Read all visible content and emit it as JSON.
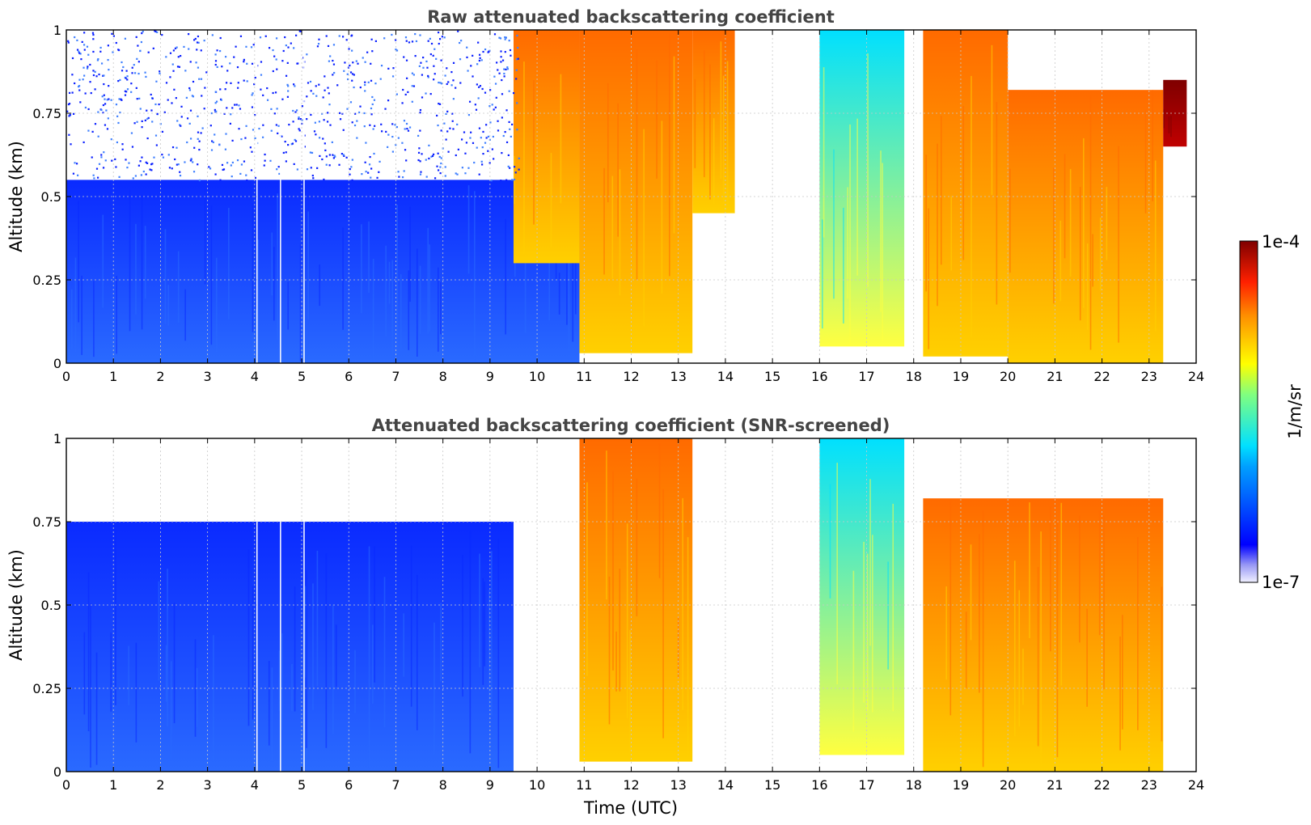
{
  "chart_data": [
    {
      "type": "heatmap",
      "title": "Raw attenuated backscattering coefficient",
      "xlabel": "",
      "ylabel": "Altitude (km)",
      "xlim": [
        0,
        24
      ],
      "ylim": [
        0,
        1
      ],
      "x_ticks": [
        "0",
        "1",
        "2",
        "3",
        "4",
        "5",
        "6",
        "7",
        "8",
        "9",
        "10",
        "11",
        "12",
        "13",
        "14",
        "15",
        "16",
        "17",
        "18",
        "19",
        "20",
        "21",
        "22",
        "23",
        "24"
      ],
      "y_ticks": [
        "0",
        "0.25",
        "0.5",
        "0.75",
        "1"
      ],
      "grid": true,
      "missing_profiles_utc": [
        4.05,
        4.55,
        5.05
      ],
      "features": [
        {
          "x_range": [
            0,
            10.9
          ],
          "alt_range": [
            0,
            0.55
          ],
          "level": "low (~3e-7 to 1e-6)"
        },
        {
          "x_range": [
            9.5,
            10.9
          ],
          "alt_range": [
            0.3,
            1.0
          ],
          "level": "high (~1e-5)"
        },
        {
          "x_range": [
            10.9,
            13.3
          ],
          "alt_range": [
            0.03,
            1.0
          ],
          "level": "high (~1e-5 to 1e-4)"
        },
        {
          "x_range": [
            13.3,
            14.2
          ],
          "alt_range": [
            0.45,
            1.0
          ],
          "level": "high (~3e-5)"
        },
        {
          "x_range": [
            16.0,
            17.8
          ],
          "alt_range": [
            0.05,
            1.0
          ],
          "level": "medium (~3e-6 to 1e-5)"
        },
        {
          "x_range": [
            18.2,
            20.0
          ],
          "alt_range": [
            0.02,
            1.0
          ],
          "level": "high (~1e-5 to 3e-5)"
        },
        {
          "x_range": [
            20.0,
            23.3
          ],
          "alt_range": [
            0.0,
            0.82
          ],
          "level": "high (~1e-5 to 1e-4)"
        },
        {
          "x_range": [
            23.3,
            23.8
          ],
          "alt_range": [
            0.65,
            0.85
          ],
          "level": "very high (~1e-4)"
        }
      ]
    },
    {
      "type": "heatmap",
      "title": "Attenuated backscattering coefficient (SNR-screened)",
      "xlabel": "Time (UTC)",
      "ylabel": "Altitude (km)",
      "xlim": [
        0,
        24
      ],
      "ylim": [
        0,
        1
      ],
      "x_ticks": [
        "0",
        "1",
        "2",
        "3",
        "4",
        "5",
        "6",
        "7",
        "8",
        "9",
        "10",
        "11",
        "12",
        "13",
        "14",
        "15",
        "16",
        "17",
        "18",
        "19",
        "20",
        "21",
        "22",
        "23",
        "24"
      ],
      "y_ticks": [
        "0",
        "0.25",
        "0.5",
        "0.75",
        "1"
      ],
      "grid": true,
      "missing_profiles_utc": [
        4.05,
        4.55,
        5.05
      ],
      "features": [
        {
          "x_range": [
            0,
            9.5
          ],
          "alt_range": [
            0,
            0.75
          ],
          "level": "low (~3e-7 to 1e-6), screened above"
        },
        {
          "x_range": [
            10.9,
            13.3
          ],
          "alt_range": [
            0.03,
            1.0
          ],
          "level": "high (~1e-5 to 1e-4)"
        },
        {
          "x_range": [
            16.0,
            17.8
          ],
          "alt_range": [
            0.05,
            1.0
          ],
          "level": "medium (~3e-6 to 1e-5)"
        },
        {
          "x_range": [
            18.2,
            23.3
          ],
          "alt_range": [
            0.0,
            0.82
          ],
          "level": "high (~1e-5 to 1e-4)"
        }
      ]
    }
  ],
  "colorbar": {
    "label": "1/m/sr",
    "max_label": "1e-4",
    "min_label": "1e-7",
    "scale": "log",
    "colormap": "jet"
  }
}
